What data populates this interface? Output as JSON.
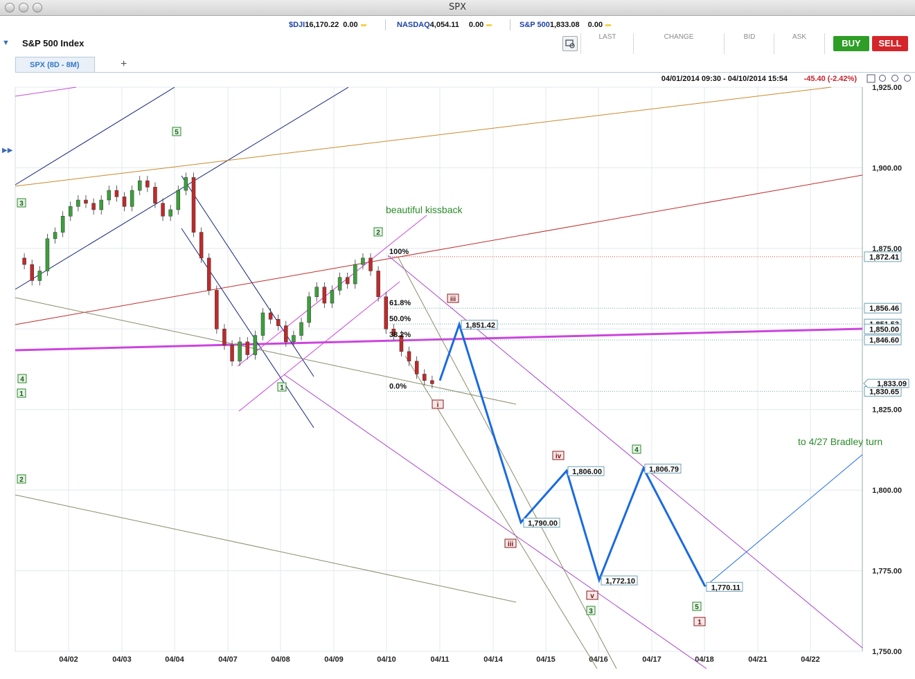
{
  "window": {
    "title": "SPX"
  },
  "tickers": [
    {
      "symbol": "$DJI",
      "value": "16,170.22",
      "change": "0.00"
    },
    {
      "symbol": "NASDAQ",
      "value": "4,054.11",
      "change": "0.00"
    },
    {
      "symbol": "S&P 500",
      "value": "1,833.08",
      "change": "0.00"
    }
  ],
  "header": {
    "title": "S&P 500 Index"
  },
  "quote_columns": [
    "LAST",
    "CHANGE",
    "BID",
    "ASK"
  ],
  "buttons": {
    "buy": "BUY",
    "sell": "SELL",
    "buy_color": "#2e9e26",
    "sell_color": "#d4262a"
  },
  "tab": {
    "label": "SPX (8D - 8M)",
    "add": "+"
  },
  "chart_info": {
    "range": "04/01/2014 09:30 - 04/10/2014 15:54",
    "change": "-45.40 (-2.42%)"
  },
  "chart_data": {
    "type": "candlestick",
    "x_ticks": [
      "04/02",
      "04/03",
      "04/04",
      "04/07",
      "04/08",
      "04/09",
      "04/10",
      "04/11",
      "04/14",
      "04/15",
      "04/16",
      "04/17",
      "04/18",
      "04/21",
      "04/22"
    ],
    "y_ticks": [
      "1,925.00",
      "1,900.00",
      "1,875.00",
      "1,850.00",
      "1,825.00",
      "1,800.00",
      "1,775.00",
      "1,750.00"
    ],
    "ylim": [
      1750,
      1925
    ],
    "price_labels": [
      "1,872.41",
      "1,856.46",
      "1,851.53",
      "1,850.00",
      "1,846.60",
      "1,833.09",
      "1,830.65"
    ],
    "current_price": "1,833.09",
    "fib_levels": [
      {
        "label": "100%",
        "value": 1872.41
      },
      {
        "label": "61.8%",
        "value": 1856.46
      },
      {
        "label": "50.0%",
        "value": 1851.53
      },
      {
        "label": "38.2%",
        "value": 1846.6
      },
      {
        "label": "0.0%",
        "value": 1830.65
      }
    ],
    "projection_points": [
      {
        "date": "04/11",
        "value": 1834
      },
      {
        "date": "04/11",
        "value": 1851.42,
        "label": "1,851.42"
      },
      {
        "date": "04/14",
        "value": 1790.0,
        "label": "1,790.00"
      },
      {
        "date": "04/15",
        "value": 1806.0,
        "label": "1,806.00"
      },
      {
        "date": "04/16",
        "value": 1772.1,
        "label": "1,772.10"
      },
      {
        "date": "04/17",
        "value": 1806.79,
        "label": "1,806.79"
      },
      {
        "date": "04/18",
        "value": 1770.11,
        "label": "1,770.11"
      }
    ],
    "annotations": [
      "beautiful kissback",
      "to 4/27 Bradley turn"
    ],
    "wave_labels_green": [
      "5",
      "3",
      "2",
      "4",
      "1",
      "2",
      "1",
      "4",
      "3",
      "5"
    ],
    "wave_labels_red": [
      "iii",
      "i",
      "iv",
      "iii",
      "v",
      "1"
    ]
  }
}
